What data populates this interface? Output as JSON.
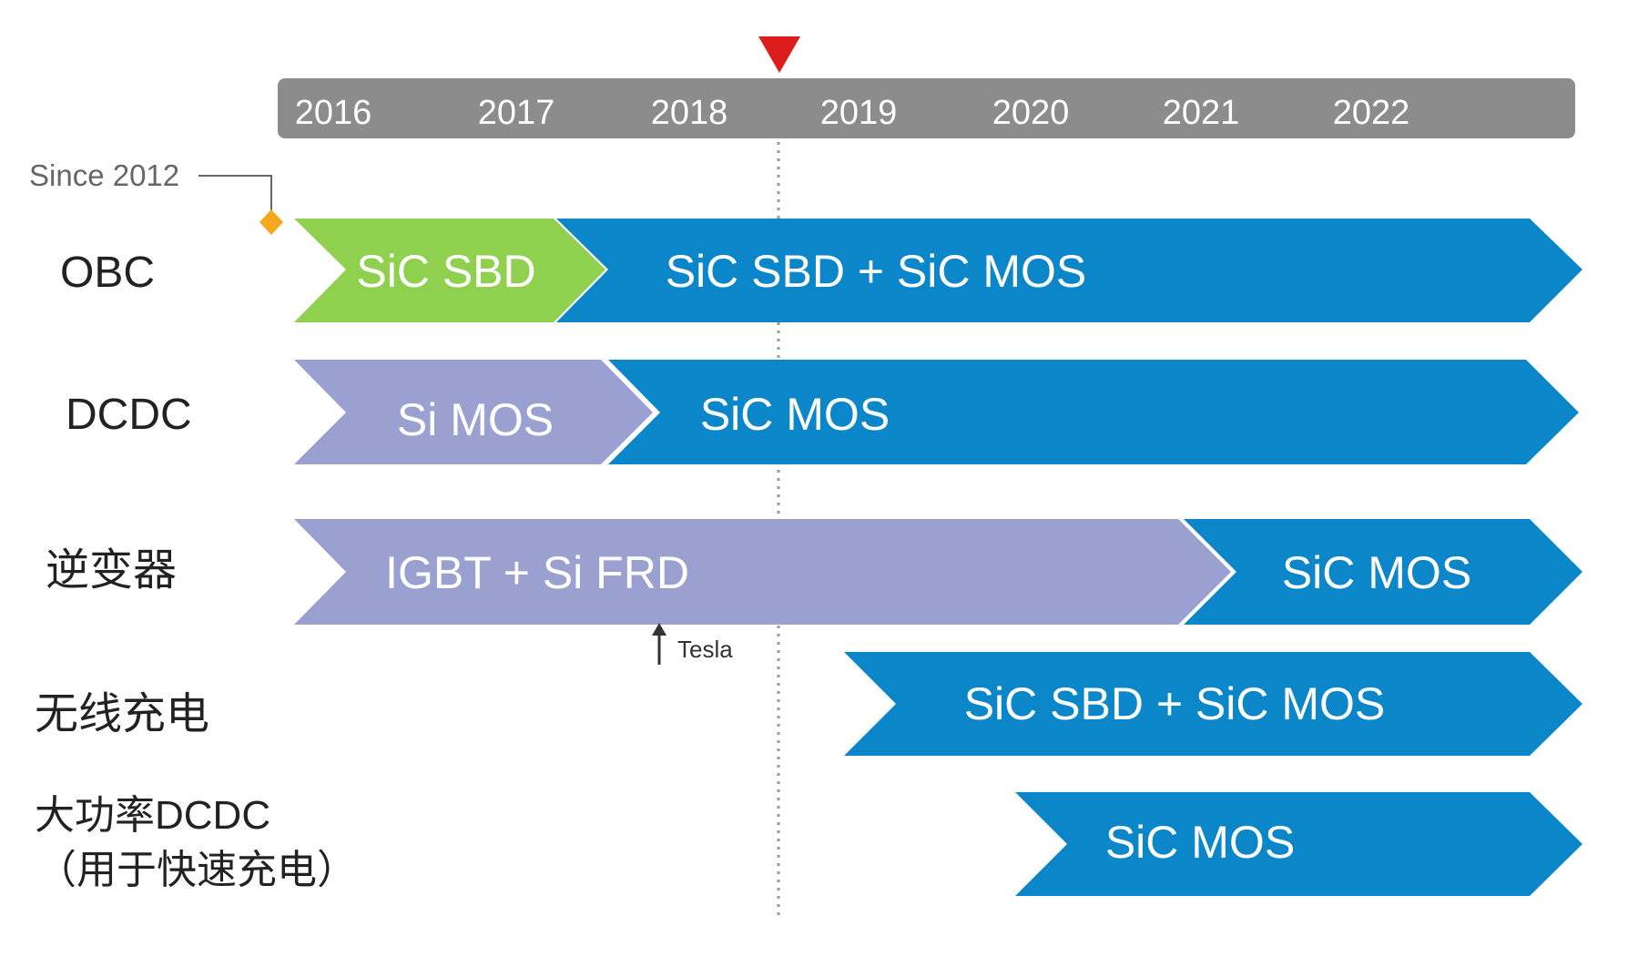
{
  "timeline": {
    "years": [
      "2016",
      "2017",
      "2018",
      "2019",
      "2020",
      "2021",
      "2022"
    ],
    "bar_color": "#8c8c8c",
    "year_color": "#ffffff"
  },
  "marker": {
    "color": "#dd1c1c"
  },
  "since_note": {
    "text": "Since 2012",
    "diamond_color": "#f3a820"
  },
  "rows": [
    {
      "label": "OBC",
      "segments": [
        {
          "text": "SiC SBD",
          "color": "#8fd14f"
        },
        {
          "text": "SiC SBD + SiC MOS",
          "color": "#0b87c9"
        }
      ]
    },
    {
      "label": "DCDC",
      "segments": [
        {
          "text": "Si MOS",
          "color": "#9aa0d0"
        },
        {
          "text": "SiC MOS",
          "color": "#0b87c9"
        }
      ]
    },
    {
      "label": "逆变器",
      "segments": [
        {
          "text": "IGBT + Si FRD",
          "color": "#9aa0d0"
        },
        {
          "text": "SiC MOS",
          "color": "#0b87c9"
        }
      ]
    },
    {
      "label": "无线充电",
      "segments": [
        {
          "text": "SiC SBD + SiC MOS",
          "color": "#0b87c9"
        }
      ]
    },
    {
      "label": "大功率DCDC",
      "label2": "（用于快速充电）",
      "segments": [
        {
          "text": "SiC MOS",
          "color": "#0b87c9"
        }
      ]
    }
  ],
  "tesla_note": {
    "text": "Tesla"
  }
}
